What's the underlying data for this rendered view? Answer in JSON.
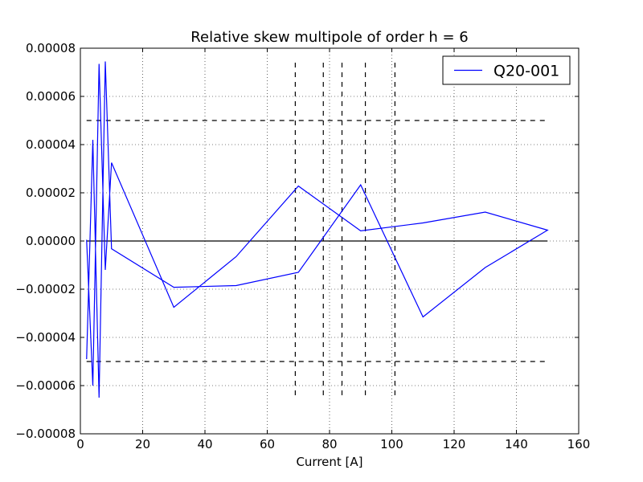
{
  "chart_data": {
    "type": "line",
    "title": "Relative skew multipole of order h = 6",
    "xlabel": "Current [A]",
    "ylabel": "",
    "xlim": [
      0,
      160
    ],
    "ylim": [
      -8e-05,
      8e-05
    ],
    "xticks": [
      0,
      20,
      40,
      60,
      80,
      100,
      120,
      140,
      160
    ],
    "xtick_labels": [
      "0",
      "20",
      "40",
      "60",
      "80",
      "100",
      "120",
      "140",
      "160"
    ],
    "yticks": [
      -8e-05,
      -6e-05,
      -4e-05,
      -2e-05,
      0,
      2e-05,
      4e-05,
      6e-05,
      8e-05
    ],
    "ytick_labels": [
      "−0.00008",
      "−0.00006",
      "−0.00004",
      "−0.00002",
      "0.00000",
      "0.00002",
      "0.00004",
      "0.00006",
      "0.00008"
    ],
    "grid": true,
    "legend_position": "top-right",
    "series": [
      {
        "name": "Q20-001",
        "color": "#0000ff",
        "x": [
          2,
          4,
          6,
          8,
          10,
          30,
          50,
          70,
          90,
          110,
          130,
          150,
          130,
          110,
          90,
          70,
          50,
          30,
          10,
          8,
          6,
          4,
          2
        ],
        "y": [
          5e-07,
          -6e-05,
          7.35e-05,
          -1.2e-05,
          3.25e-05,
          -2.75e-05,
          -6.5e-06,
          2.28e-05,
          4.2e-06,
          7.5e-06,
          1.2e-05,
          4.5e-06,
          -1.1e-05,
          -3.15e-05,
          2.33e-05,
          -1.3e-05,
          -1.85e-05,
          -1.92e-05,
          -3.2e-06,
          7.45e-05,
          -6.5e-05,
          4.2e-05,
          -4.9e-05
        ]
      }
    ],
    "reference_lines": {
      "horizontal_dashed": {
        "values": [
          5e-05,
          -5e-05
        ],
        "x_range": [
          2,
          150
        ],
        "color": "#000000"
      },
      "horizontal_solid": {
        "values": [
          0
        ],
        "x_range": [
          2,
          150
        ],
        "color": "#000000"
      },
      "vertical_dashed": {
        "values": [
          69,
          78,
          84,
          91.5,
          101
        ],
        "y_range": [
          -6.6e-05,
          7.4e-05
        ],
        "color": "#000000"
      }
    }
  }
}
